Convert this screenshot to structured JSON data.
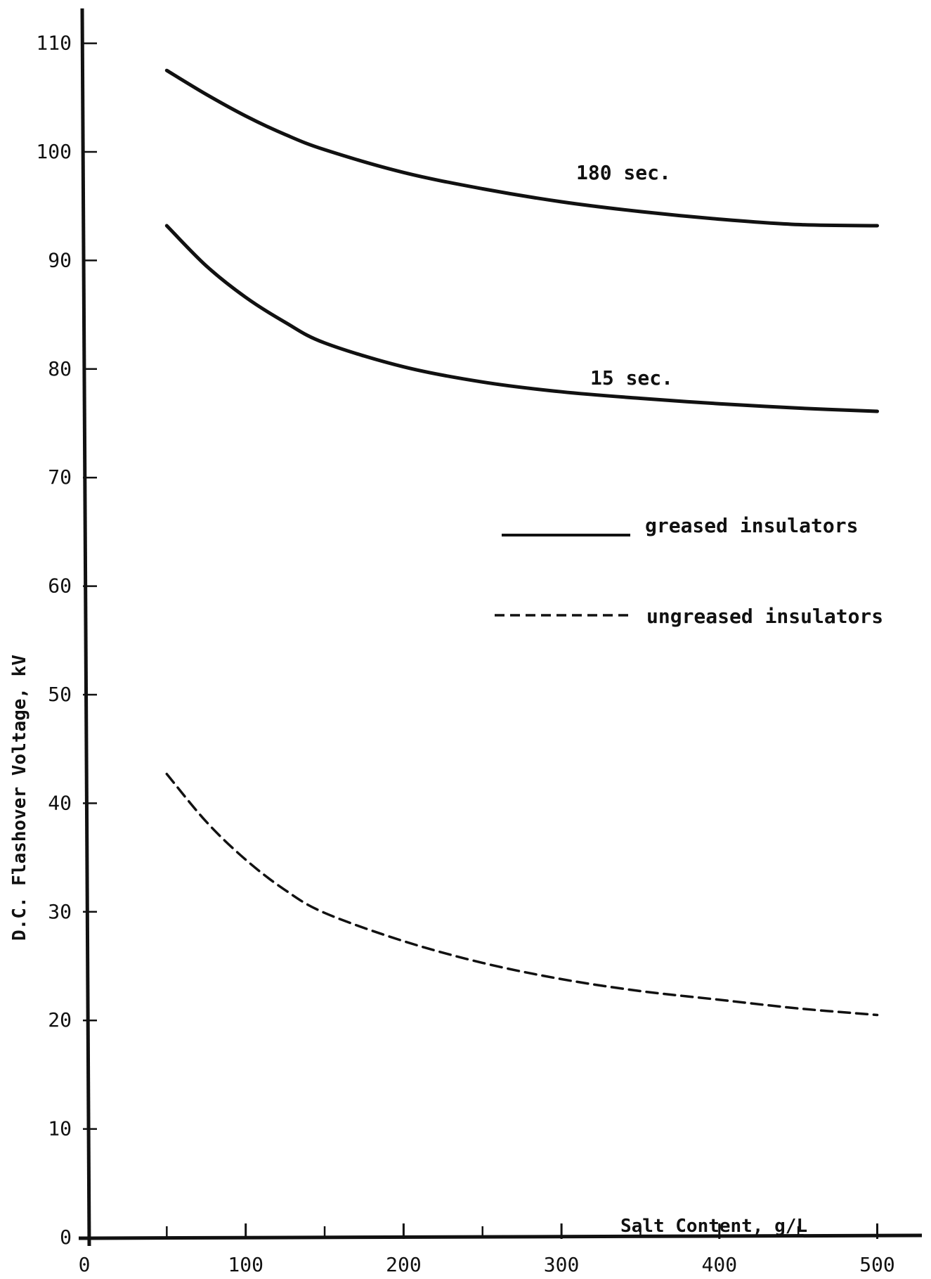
{
  "chart_data": {
    "type": "line",
    "title": "",
    "xlabel": "Salt Content, g/L",
    "ylabel": "D.C. Flashover Voltage, kV",
    "xlim": [
      0,
      525
    ],
    "ylim": [
      0,
      112
    ],
    "x_ticks": [
      0,
      100,
      200,
      300,
      400,
      500
    ],
    "x_tick_labels": [
      "0",
      "100",
      "200",
      "300",
      "400",
      "500"
    ],
    "y_ticks": [
      0,
      10,
      20,
      30,
      40,
      50,
      60,
      70,
      80,
      90,
      100,
      110
    ],
    "y_tick_labels": [
      "0",
      "10",
      "20",
      "30",
      "40",
      "50",
      "60",
      "70",
      "80",
      "90",
      "100",
      "110"
    ],
    "x_minor_ticks": [
      50,
      150,
      250,
      350,
      450
    ],
    "grid": false,
    "legend_position": "right",
    "legend": [
      {
        "label": "greased insulators",
        "style": "solid"
      },
      {
        "label": "ungreased insulators",
        "style": "dashed"
      }
    ],
    "series": [
      {
        "name": "180 sec.",
        "style": "solid",
        "label": "180 sec.",
        "x": [
          50,
          75,
          100,
          125,
          150,
          200,
          250,
          300,
          350,
          400,
          450,
          500
        ],
        "y": [
          107.5,
          105.3,
          103.3,
          101.6,
          100.2,
          98.1,
          96.6,
          95.4,
          94.5,
          93.8,
          93.3,
          93.2
        ]
      },
      {
        "name": "15 sec.",
        "style": "solid",
        "label": "15 sec.",
        "x": [
          50,
          75,
          100,
          125,
          150,
          200,
          250,
          300,
          350,
          400,
          450,
          500
        ],
        "y": [
          93.2,
          89.5,
          86.6,
          84.3,
          82.4,
          80.2,
          78.8,
          77.9,
          77.3,
          76.8,
          76.4,
          76.1
        ]
      },
      {
        "name": "ungreased insulators",
        "style": "dashed",
        "x": [
          50,
          75,
          100,
          125,
          150,
          200,
          250,
          300,
          350,
          400,
          450,
          500
        ],
        "y": [
          42.7,
          38.3,
          34.8,
          32.0,
          29.9,
          27.3,
          25.3,
          23.8,
          22.7,
          21.9,
          21.1,
          20.5
        ]
      }
    ]
  }
}
